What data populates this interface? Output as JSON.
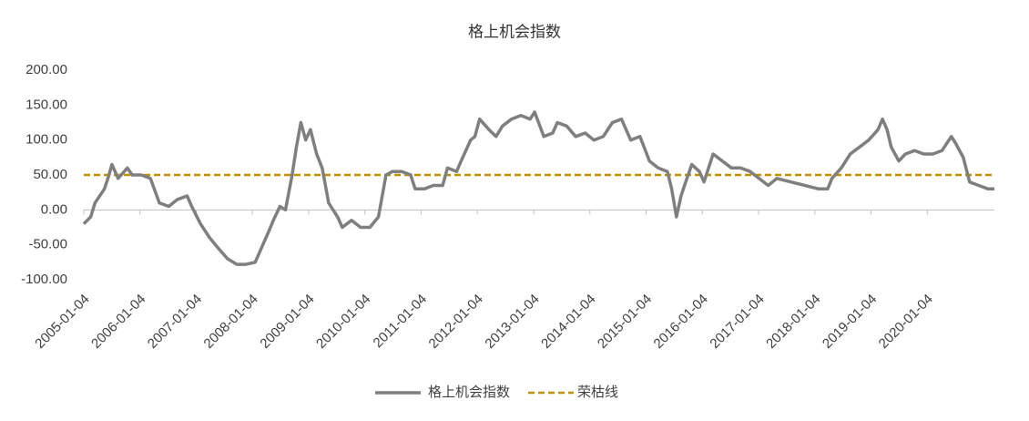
{
  "chart_data": {
    "type": "line",
    "title": "格上机会指数",
    "x": [
      "2005-01-04",
      "2005-02-18",
      "2005-03-18",
      "2005-05-18",
      "2005-06-17",
      "2005-07-06",
      "2005-08-15",
      "2005-10-14",
      "2005-11-14",
      "2006-01-13",
      "2006-03-13",
      "2006-05-10",
      "2006-07-10",
      "2006-09-05",
      "2006-11-06",
      "2006-12-06",
      "2007-02-01",
      "2007-04-02",
      "2007-05-28",
      "2007-07-27",
      "2007-09-25",
      "2007-11-23",
      "2008-01-22",
      "2008-02-21",
      "2008-04-21",
      "2008-05-19",
      "2008-07-01",
      "2008-08-06",
      "2008-09-18",
      "2008-10-16",
      "2008-11-14",
      "2008-12-15",
      "2009-01-15",
      "2009-02-24",
      "2009-04-01",
      "2009-05-13",
      "2009-07-10",
      "2009-08-10",
      "2009-10-09",
      "2009-12-07",
      "2010-02-05",
      "2010-04-02",
      "2010-05-21",
      "2010-07-01",
      "2010-08-31",
      "2010-10-28",
      "2010-11-26",
      "2011-01-26",
      "2011-03-24",
      "2011-05-24",
      "2011-06-24",
      "2011-08-22",
      "2011-09-21",
      "2011-11-21",
      "2011-12-19",
      "2012-01-19",
      "2012-03-19",
      "2012-05-04",
      "2012-06-15",
      "2012-08-13",
      "2012-10-12",
      "2012-12-12",
      "2013-01-10",
      "2013-03-11",
      "2013-05-07",
      "2013-06-07",
      "2013-08-06",
      "2013-10-04",
      "2013-12-04",
      "2014-01-30",
      "2014-04-01",
      "2014-05-30",
      "2014-07-28",
      "2014-09-26",
      "2014-11-25",
      "2015-01-26",
      "2015-03-23",
      "2015-05-22",
      "2015-06-19",
      "2015-07-20",
      "2015-08-19",
      "2015-09-18",
      "2015-10-28",
      "2015-12-16",
      "2016-01-15",
      "2016-03-14",
      "2016-05-13",
      "2016-07-11",
      "2016-09-09",
      "2016-11-09",
      "2017-01-06",
      "2017-03-07",
      "2017-05-03",
      "2017-08-01",
      "2017-11-01",
      "2018-01-29",
      "2018-03-28",
      "2018-04-25",
      "2018-06-25",
      "2018-08-22",
      "2018-10-22",
      "2018-12-20",
      "2019-02-18",
      "2019-03-19",
      "2019-04-18",
      "2019-05-15",
      "2019-07-03",
      "2019-08-15",
      "2019-10-14",
      "2019-12-12",
      "2020-02-10",
      "2020-04-09",
      "2020-06-08",
      "2020-07-07",
      "2020-08-25",
      "2020-10-05",
      "2020-12-03",
      "2021-02-02",
      "2021-03-15"
    ],
    "series": [
      {
        "name": "格上机会指数",
        "color": "#7f7f7f",
        "values": [
          -20,
          -10,
          10,
          30,
          50,
          65,
          45,
          60,
          50,
          50,
          45,
          10,
          5,
          15,
          20,
          5,
          -20,
          -40,
          -55,
          -70,
          -78,
          -78,
          -75,
          -60,
          -30,
          -15,
          5,
          0,
          50,
          90,
          125,
          100,
          115,
          80,
          60,
          10,
          -10,
          -25,
          -15,
          -25,
          -25,
          -10,
          50,
          55,
          55,
          50,
          30,
          30,
          35,
          35,
          60,
          55,
          70,
          100,
          105,
          130,
          115,
          105,
          120,
          130,
          135,
          130,
          140,
          105,
          110,
          125,
          120,
          105,
          110,
          100,
          105,
          125,
          130,
          100,
          105,
          70,
          60,
          55,
          30,
          -10,
          20,
          40,
          65,
          55,
          40,
          80,
          70,
          60,
          60,
          55,
          45,
          35,
          45,
          40,
          35,
          30,
          30,
          45,
          60,
          80,
          90,
          100,
          115,
          130,
          115,
          90,
          70,
          80,
          85,
          80,
          80,
          85,
          105,
          95,
          75,
          40,
          35,
          30,
          30
        ]
      }
    ],
    "reference_lines": [
      {
        "name": "荣枯线",
        "value": 50,
        "color": "#bf9000",
        "dashed": true
      }
    ],
    "xlim": [
      "2005-01-04",
      "2021-03-15"
    ],
    "xticks": [
      "2005-01-04",
      "2006-01-04",
      "2007-01-04",
      "2008-01-04",
      "2009-01-04",
      "2010-01-04",
      "2011-01-04",
      "2012-01-04",
      "2013-01-04",
      "2014-01-04",
      "2015-01-04",
      "2016-01-04",
      "2017-01-04",
      "2018-01-04",
      "2019-01-04",
      "2020-01-04"
    ],
    "ylim": [
      -100,
      200
    ],
    "yticks": [
      {
        "value": -100,
        "label": "-100.00"
      },
      {
        "value": -50,
        "label": "-50.00"
      },
      {
        "value": 0,
        "label": "0.00"
      },
      {
        "value": 50,
        "label": "50.00"
      },
      {
        "value": 100,
        "label": "100.00"
      },
      {
        "value": 150,
        "label": "150.00"
      },
      {
        "value": 200,
        "label": "200.00"
      }
    ],
    "legend": "bottom"
  }
}
